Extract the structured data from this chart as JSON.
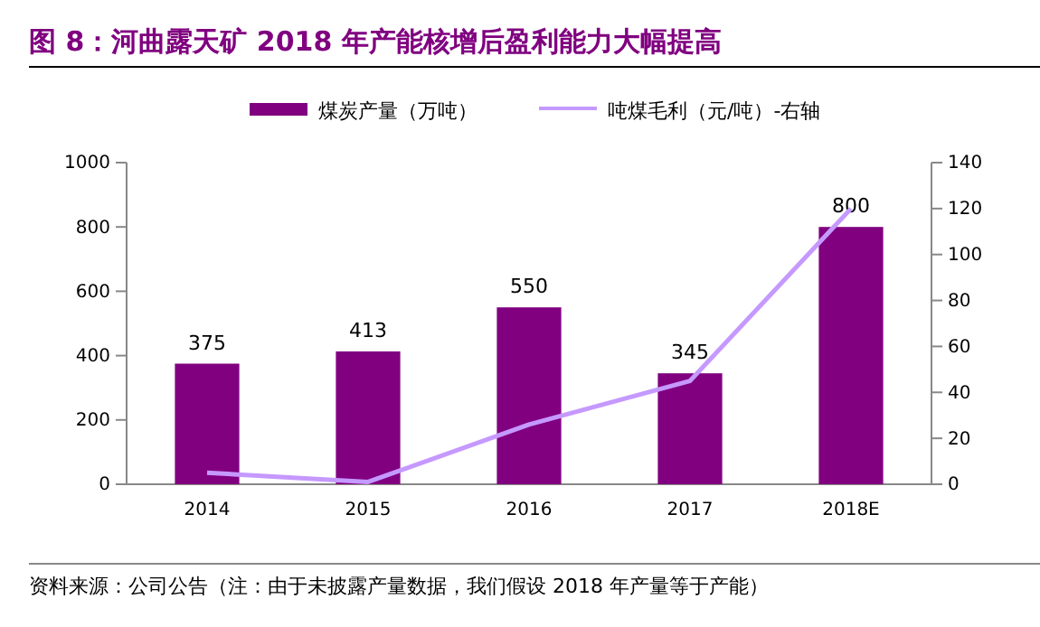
{
  "chart_data": {
    "type": "bar",
    "title": "图 8：河曲露天矿 2018 年产能核增后盈利能力大幅提高",
    "categories": [
      "2014",
      "2015",
      "2016",
      "2017",
      "2018E"
    ],
    "series": [
      {
        "name": "煤炭产量（万吨）",
        "color": "#800080",
        "values": [
          375,
          413,
          550,
          345,
          800
        ],
        "value_labels": [
          "375",
          "413",
          "550",
          "345",
          "800"
        ]
      },
      {
        "name": "吨煤毛利（元/吨）-右轴",
        "type": "line",
        "axis": "y2",
        "color": "#c599ff",
        "values": [
          5,
          1,
          26,
          45,
          120
        ]
      }
    ],
    "ylim": [
      0,
      1000
    ],
    "yticks": [
      0,
      200,
      400,
      600,
      800,
      1000
    ],
    "y2lim": [
      0,
      140
    ],
    "y2ticks": [
      0,
      20,
      40,
      60,
      80,
      100,
      120,
      140
    ],
    "legend": "top",
    "grid": false,
    "marker": "none",
    "annotations": [
      "资料来源：公司公告（注：由于未披露产量数据，我们假设 2018 年产量等于产能）"
    ]
  }
}
